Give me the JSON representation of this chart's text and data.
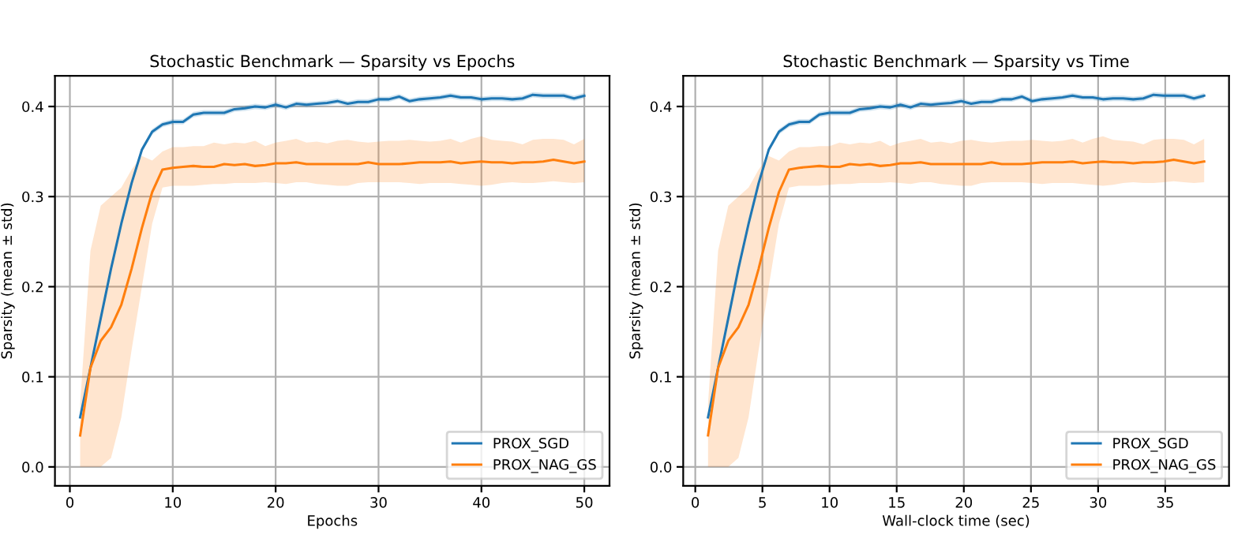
{
  "chart_data": [
    {
      "type": "line",
      "title": "Stochastic Benchmark — Sparsity vs Epochs",
      "xlabel": "Epochs",
      "ylabel": "Sparsity (mean ± std)",
      "x": [
        1,
        2,
        3,
        4,
        5,
        6,
        7,
        8,
        9,
        10,
        11,
        12,
        13,
        14,
        15,
        16,
        17,
        18,
        19,
        20,
        21,
        22,
        23,
        24,
        25,
        26,
        27,
        28,
        29,
        30,
        31,
        32,
        33,
        34,
        35,
        36,
        37,
        38,
        39,
        40,
        41,
        42,
        43,
        44,
        45,
        46,
        47,
        48,
        49,
        50
      ],
      "xlim": [
        -1.45,
        52.45
      ],
      "xticks": [
        0,
        10,
        20,
        30,
        40,
        50
      ],
      "ylim": [
        -0.021,
        0.434
      ],
      "yticks": [
        {
          "value": 0,
          "label": "0.0"
        },
        0.1,
        0.2,
        0.3,
        0.4
      ],
      "grid": true,
      "legend": "bottom right",
      "series": [
        {
          "name": "PROX_SGD",
          "color": "#1f77b4",
          "values": [
            0.055,
            0.11,
            0.165,
            0.22,
            0.27,
            0.315,
            0.352,
            0.372,
            0.38,
            0.383,
            0.383,
            0.391,
            0.393,
            0.393,
            0.393,
            0.397,
            0.398,
            0.4,
            0.399,
            0.402,
            0.399,
            0.403,
            0.402,
            0.403,
            0.404,
            0.406,
            0.403,
            0.405,
            0.405,
            0.408,
            0.408,
            0.411,
            0.406,
            0.408,
            0.409,
            0.41,
            0.412,
            0.41,
            0.41,
            0.408,
            0.409,
            0.409,
            0.408,
            0.409,
            0.413,
            0.412,
            0.412,
            0.412,
            0.409,
            0.412
          ],
          "lower": [
            0.053,
            0.107,
            0.162,
            0.217,
            0.267,
            0.312,
            0.349,
            0.369,
            0.377,
            0.38,
            0.38,
            0.388,
            0.39,
            0.39,
            0.39,
            0.394,
            0.395,
            0.397,
            0.396,
            0.399,
            0.396,
            0.4,
            0.399,
            0.4,
            0.401,
            0.403,
            0.4,
            0.402,
            0.402,
            0.405,
            0.405,
            0.408,
            0.403,
            0.405,
            0.406,
            0.407,
            0.409,
            0.407,
            0.407,
            0.405,
            0.406,
            0.406,
            0.405,
            0.406,
            0.41,
            0.409,
            0.409,
            0.409,
            0.406,
            0.409
          ],
          "upper": [
            0.057,
            0.113,
            0.168,
            0.223,
            0.273,
            0.318,
            0.355,
            0.375,
            0.383,
            0.386,
            0.386,
            0.394,
            0.396,
            0.396,
            0.396,
            0.4,
            0.401,
            0.403,
            0.402,
            0.405,
            0.402,
            0.406,
            0.405,
            0.406,
            0.407,
            0.409,
            0.406,
            0.408,
            0.408,
            0.411,
            0.411,
            0.414,
            0.409,
            0.411,
            0.412,
            0.413,
            0.415,
            0.413,
            0.413,
            0.411,
            0.412,
            0.412,
            0.411,
            0.412,
            0.416,
            0.415,
            0.415,
            0.415,
            0.412,
            0.415
          ]
        },
        {
          "name": "PROX_NAG_GS",
          "color": "#ff7f0e",
          "values": [
            0.035,
            0.11,
            0.14,
            0.155,
            0.18,
            0.22,
            0.265,
            0.305,
            0.33,
            0.332,
            0.333,
            0.334,
            0.333,
            0.333,
            0.336,
            0.335,
            0.336,
            0.334,
            0.335,
            0.337,
            0.337,
            0.338,
            0.336,
            0.336,
            0.336,
            0.336,
            0.336,
            0.336,
            0.338,
            0.336,
            0.336,
            0.336,
            0.337,
            0.338,
            0.338,
            0.338,
            0.339,
            0.337,
            0.338,
            0.339,
            0.338,
            0.338,
            0.337,
            0.338,
            0.338,
            0.339,
            0.341,
            0.339,
            0.337,
            0.339
          ],
          "lower": [
            0,
            0,
            0,
            0.01,
            0.055,
            0.13,
            0.2,
            0.27,
            0.31,
            0.312,
            0.312,
            0.312,
            0.313,
            0.314,
            0.314,
            0.315,
            0.315,
            0.315,
            0.316,
            0.315,
            0.314,
            0.316,
            0.316,
            0.314,
            0.313,
            0.312,
            0.312,
            0.315,
            0.316,
            0.316,
            0.316,
            0.316,
            0.315,
            0.314,
            0.315,
            0.315,
            0.315,
            0.314,
            0.313,
            0.312,
            0.313,
            0.315,
            0.316,
            0.315,
            0.315,
            0.316,
            0.317,
            0.316,
            0.315,
            0.316
          ],
          "upper": [
            0.07,
            0.24,
            0.29,
            0.3,
            0.31,
            0.33,
            0.345,
            0.34,
            0.35,
            0.355,
            0.355,
            0.356,
            0.356,
            0.36,
            0.358,
            0.36,
            0.359,
            0.362,
            0.356,
            0.36,
            0.362,
            0.364,
            0.36,
            0.361,
            0.359,
            0.362,
            0.363,
            0.361,
            0.36,
            0.361,
            0.362,
            0.362,
            0.363,
            0.362,
            0.361,
            0.362,
            0.364,
            0.36,
            0.364,
            0.367,
            0.363,
            0.362,
            0.361,
            0.358,
            0.363,
            0.364,
            0.364,
            0.363,
            0.358,
            0.364
          ]
        }
      ]
    },
    {
      "type": "line",
      "title": "Stochastic Benchmark — Sparsity vs Time",
      "xlabel": "Wall-clock time (sec)",
      "ylabel": "Sparsity (mean ± std)",
      "x": [
        0.95,
        1.7,
        2.46,
        3.21,
        3.97,
        4.72,
        5.47,
        6.23,
        6.98,
        7.74,
        8.49,
        9.24,
        10.0,
        10.75,
        11.51,
        12.26,
        13.01,
        13.77,
        14.52,
        15.28,
        16.03,
        16.78,
        17.54,
        18.29,
        19.05,
        19.8,
        20.55,
        21.31,
        22.06,
        22.82,
        23.57,
        24.32,
        25.08,
        25.83,
        26.59,
        27.34,
        28.09,
        28.85,
        29.6,
        30.36,
        31.11,
        31.86,
        32.62,
        33.37,
        34.13,
        34.88,
        35.63,
        36.39,
        37.14,
        37.9
      ],
      "xlim": [
        -0.9,
        39.75
      ],
      "xticks": [
        0,
        5,
        10,
        15,
        20,
        25,
        30,
        35
      ],
      "ylim": [
        -0.021,
        0.434
      ],
      "yticks": [
        {
          "value": 0,
          "label": "0.0"
        },
        0.1,
        0.2,
        0.3,
        0.4
      ],
      "grid": true,
      "legend": "bottom right",
      "series": [
        {
          "name": "PROX_SGD",
          "color": "#1f77b4",
          "values": [
            0.055,
            0.11,
            0.165,
            0.22,
            0.27,
            0.315,
            0.352,
            0.372,
            0.38,
            0.383,
            0.383,
            0.391,
            0.393,
            0.393,
            0.393,
            0.397,
            0.398,
            0.4,
            0.399,
            0.402,
            0.399,
            0.403,
            0.402,
            0.403,
            0.404,
            0.406,
            0.403,
            0.405,
            0.405,
            0.408,
            0.408,
            0.411,
            0.406,
            0.408,
            0.409,
            0.41,
            0.412,
            0.41,
            0.41,
            0.408,
            0.409,
            0.409,
            0.408,
            0.409,
            0.413,
            0.412,
            0.412,
            0.412,
            0.409,
            0.412
          ],
          "lower": [
            0.053,
            0.107,
            0.162,
            0.217,
            0.267,
            0.312,
            0.349,
            0.369,
            0.377,
            0.38,
            0.38,
            0.388,
            0.39,
            0.39,
            0.39,
            0.394,
            0.395,
            0.397,
            0.396,
            0.399,
            0.396,
            0.4,
            0.399,
            0.4,
            0.401,
            0.403,
            0.4,
            0.402,
            0.402,
            0.405,
            0.405,
            0.408,
            0.403,
            0.405,
            0.406,
            0.407,
            0.409,
            0.407,
            0.407,
            0.405,
            0.406,
            0.406,
            0.405,
            0.406,
            0.41,
            0.409,
            0.409,
            0.409,
            0.406,
            0.409
          ],
          "upper": [
            0.057,
            0.113,
            0.168,
            0.223,
            0.273,
            0.318,
            0.355,
            0.375,
            0.383,
            0.386,
            0.386,
            0.394,
            0.396,
            0.396,
            0.396,
            0.4,
            0.401,
            0.403,
            0.402,
            0.405,
            0.402,
            0.406,
            0.405,
            0.406,
            0.407,
            0.409,
            0.406,
            0.408,
            0.408,
            0.411,
            0.411,
            0.414,
            0.409,
            0.411,
            0.412,
            0.413,
            0.415,
            0.413,
            0.413,
            0.411,
            0.412,
            0.412,
            0.411,
            0.412,
            0.416,
            0.415,
            0.415,
            0.415,
            0.412,
            0.415
          ]
        },
        {
          "name": "PROX_NAG_GS",
          "color": "#ff7f0e",
          "values": [
            0.035,
            0.11,
            0.14,
            0.155,
            0.18,
            0.22,
            0.265,
            0.305,
            0.33,
            0.332,
            0.333,
            0.334,
            0.333,
            0.333,
            0.336,
            0.335,
            0.336,
            0.334,
            0.335,
            0.337,
            0.337,
            0.338,
            0.336,
            0.336,
            0.336,
            0.336,
            0.336,
            0.336,
            0.338,
            0.336,
            0.336,
            0.336,
            0.337,
            0.338,
            0.338,
            0.338,
            0.339,
            0.337,
            0.338,
            0.339,
            0.338,
            0.338,
            0.337,
            0.338,
            0.338,
            0.339,
            0.341,
            0.339,
            0.337,
            0.339
          ],
          "lower": [
            0,
            0,
            0,
            0.01,
            0.055,
            0.13,
            0.2,
            0.27,
            0.31,
            0.312,
            0.312,
            0.312,
            0.313,
            0.314,
            0.314,
            0.315,
            0.315,
            0.315,
            0.316,
            0.315,
            0.314,
            0.316,
            0.316,
            0.314,
            0.313,
            0.312,
            0.312,
            0.315,
            0.316,
            0.316,
            0.316,
            0.316,
            0.315,
            0.314,
            0.315,
            0.315,
            0.315,
            0.314,
            0.313,
            0.312,
            0.313,
            0.315,
            0.316,
            0.315,
            0.315,
            0.316,
            0.317,
            0.316,
            0.315,
            0.316
          ],
          "upper": [
            0.07,
            0.24,
            0.29,
            0.3,
            0.31,
            0.33,
            0.345,
            0.34,
            0.35,
            0.355,
            0.355,
            0.356,
            0.356,
            0.36,
            0.358,
            0.36,
            0.359,
            0.362,
            0.356,
            0.36,
            0.362,
            0.364,
            0.36,
            0.361,
            0.359,
            0.362,
            0.363,
            0.361,
            0.36,
            0.361,
            0.362,
            0.362,
            0.363,
            0.362,
            0.361,
            0.362,
            0.364,
            0.36,
            0.364,
            0.367,
            0.363,
            0.362,
            0.361,
            0.358,
            0.363,
            0.364,
            0.364,
            0.363,
            0.358,
            0.364
          ]
        }
      ]
    }
  ]
}
